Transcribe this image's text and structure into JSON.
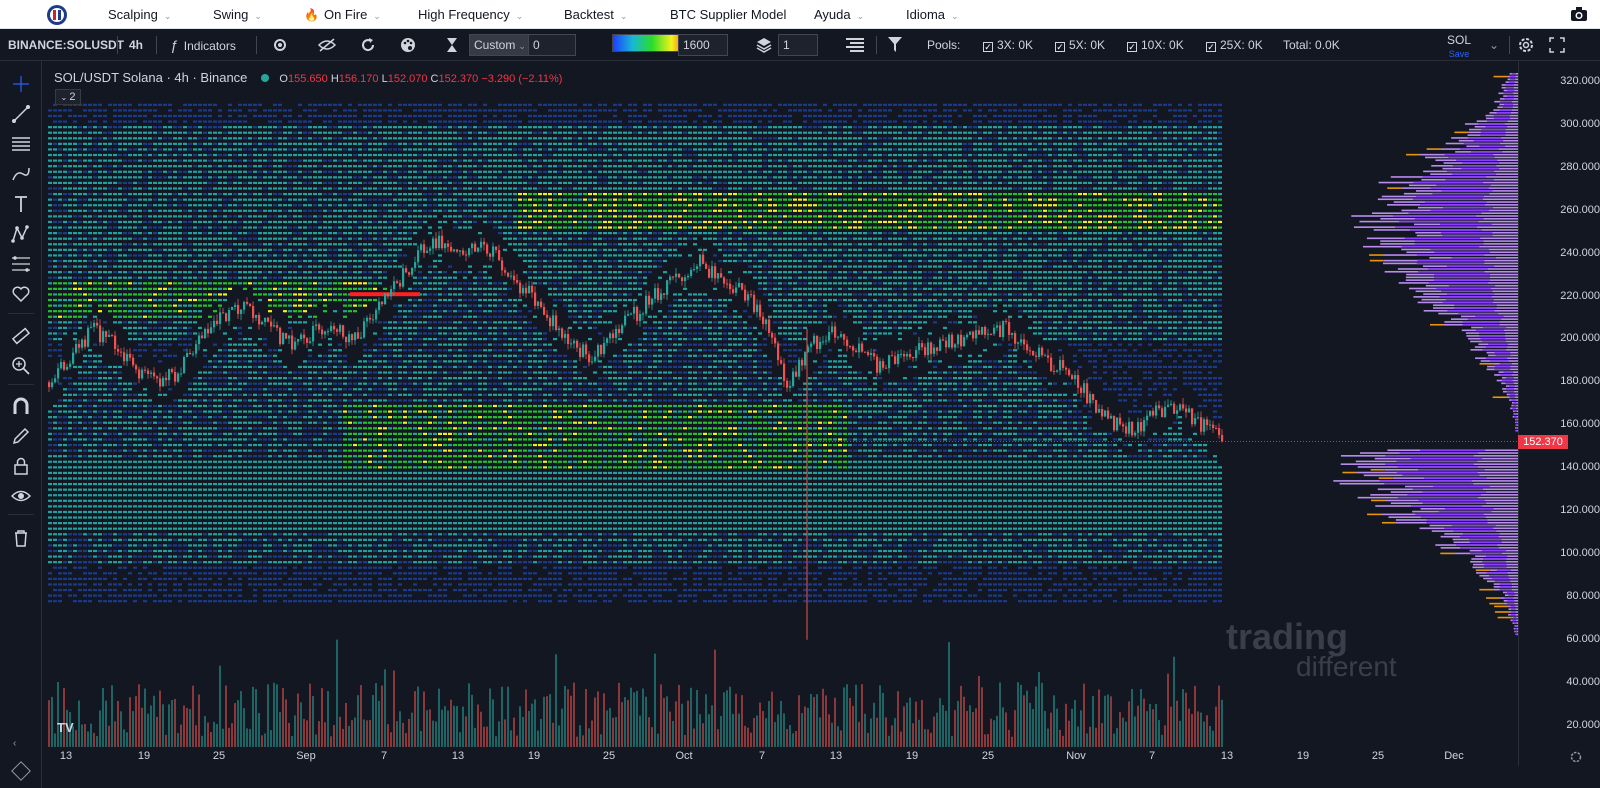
{
  "topnav": {
    "items": [
      {
        "label": "Scalping",
        "chev": true
      },
      {
        "label": "Swing",
        "chev": true
      },
      {
        "label": "On Fire",
        "chev": true,
        "fire": true
      },
      {
        "label": "High Frequency",
        "chev": true
      },
      {
        "label": "Backtest",
        "chev": true
      },
      {
        "label": "BTC Supplier Model",
        "chev": false
      },
      {
        "label": "Ayuda",
        "chev": true
      },
      {
        "label": "Idioma",
        "chev": true
      }
    ]
  },
  "toolbar": {
    "symbol": "BINANCE:SOLUSDT",
    "interval": "4h",
    "indicators_label": "Indicators",
    "custom_label": "Custom",
    "custom_value": "0",
    "gradient_value": "1600",
    "layers_value": "1",
    "pools_label": "Pools:",
    "pool_3x": "3X: 0K",
    "pool_5x": "5X: 0K",
    "pool_10x": "10X: 0K",
    "pool_25x": "25X: 0K",
    "total": "Total: 0.0K",
    "layout_name": "SOL",
    "layout_save": "Save"
  },
  "legend": {
    "title": "SOL/USDT Solana · 4h · Binance",
    "open_label": "O",
    "open": "155.650",
    "high_label": "H",
    "high": "156.170",
    "low_label": "L",
    "low": "152.070",
    "close_label": "C",
    "close": "152.370",
    "change": "−3.290 (−2.11%)",
    "collapse": "2"
  },
  "chart_data": {
    "type": "line",
    "title": "SOL/USDT Solana · 4h · Binance",
    "xlabel": "",
    "ylabel": "",
    "ylim": [
      10,
      330
    ],
    "y_ticks": [
      "320.000",
      "300.000",
      "280.000",
      "260.000",
      "240.000",
      "220.000",
      "200.000",
      "180.000",
      "160.000",
      "140.000",
      "120.000",
      "100.000",
      "80.000",
      "60.000",
      "40.000",
      "20.000"
    ],
    "x_ticks": [
      "13",
      "19",
      "25",
      "Sep",
      "7",
      "13",
      "19",
      "25",
      "Oct",
      "7",
      "13",
      "19",
      "25",
      "Nov",
      "7",
      "13",
      "19",
      "25",
      "Dec"
    ],
    "last_price": "152.370",
    "series": [
      {
        "values": [
          180,
          192,
          205,
          198,
          186,
          181,
          185,
          200,
          210,
          214,
          206,
          198,
          202,
          208,
          200,
          212,
          225,
          240,
          246,
          238,
          245,
          232,
          222,
          210,
          198,
          192,
          205,
          212,
          222,
          230,
          236,
          226,
          222,
          205,
          178,
          196,
          205,
          198,
          188,
          192,
          195,
          198,
          200,
          203,
          205,
          198,
          188,
          186,
          170,
          160,
          158,
          166,
          170,
          160,
          152.37
        ]
      }
    ],
    "heatmap_levels": "liquidation heatmap",
    "colors": {
      "low": "#1b3a8a",
      "mid": "#1ea3a0",
      "high": "#22c22a",
      "max": "#f2f21a",
      "peak": "#ff2020",
      "profile": "#8b3dff",
      "profile_light": "#b98cf0",
      "profile_orange": "#e8950c"
    }
  },
  "watermark": {
    "line1": "trading",
    "line2": "different"
  },
  "tv_logo": "TV"
}
